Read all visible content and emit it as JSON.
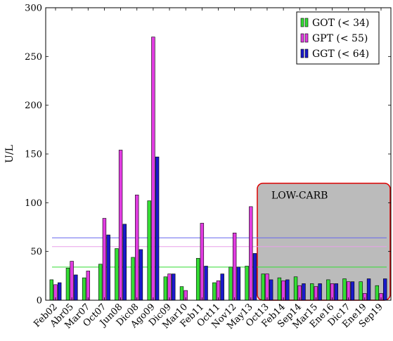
{
  "chart_data": {
    "type": "bar",
    "ylabel": "U/L",
    "ylim": [
      0,
      300
    ],
    "yticks": [
      0,
      50,
      100,
      150,
      200,
      250,
      300
    ],
    "categories": [
      "Feb02",
      "Abr05",
      "Mar07",
      "Oct07",
      "Jun08",
      "Dic08",
      "Ago09",
      "Dic09",
      "Mar10",
      "Feb11",
      "Oct11",
      "Nov12",
      "May13",
      "Oct13",
      "Feb14",
      "Sep14",
      "Mar15",
      "Ene16",
      "Dic17",
      "Ene19",
      "Sep19"
    ],
    "series": [
      {
        "name": "GOT (< 34)",
        "color": "#33dd33",
        "values": [
          21,
          33,
          23,
          37,
          53,
          44,
          102,
          24,
          14,
          43,
          18,
          34,
          35,
          27,
          23,
          24,
          17,
          21,
          22,
          19,
          15
        ]
      },
      {
        "name": "GPT (< 55)",
        "color": "#e13ce1",
        "values": [
          16,
          40,
          30,
          84,
          154,
          108,
          270,
          27,
          10,
          79,
          20,
          69,
          96,
          27,
          20,
          15,
          14,
          17,
          19,
          7,
          7
        ]
      },
      {
        "name": "GGT (< 64)",
        "color": "#1a1acc",
        "values": [
          18,
          26,
          0,
          67,
          78,
          52,
          147,
          27,
          0,
          35,
          27,
          34,
          48,
          21,
          21,
          17,
          17,
          17,
          19,
          22,
          22
        ]
      }
    ],
    "reference_lines": [
      {
        "value": 34,
        "color": "#33dd33"
      },
      {
        "value": 55,
        "color": "#e8a0e8"
      },
      {
        "value": 64,
        "color": "#6666ee"
      }
    ],
    "annotation": {
      "text": "LOW-CARB",
      "from_category": "Oct13",
      "to_category": "Sep19",
      "y_top": 120,
      "fill": "#bbbbbb",
      "stroke": "#dd0000"
    },
    "legend_position": "top-right",
    "grid": false
  }
}
